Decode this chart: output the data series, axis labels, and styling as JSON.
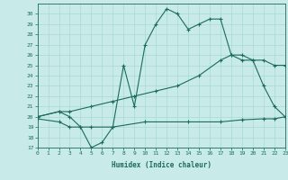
{
  "line1_x": [
    0,
    2,
    3,
    4,
    5,
    6,
    7,
    8,
    9,
    10,
    11,
    12,
    13,
    14,
    15,
    16,
    17,
    18,
    19,
    20,
    21,
    22,
    23
  ],
  "line1_y": [
    20.0,
    20.5,
    20.0,
    19.0,
    17.0,
    17.5,
    19.0,
    25.0,
    21.0,
    27.0,
    29.0,
    30.5,
    30.0,
    28.5,
    29.0,
    29.5,
    29.5,
    26.0,
    26.0,
    25.5,
    23.0,
    21.0,
    20.0
  ],
  "line2_x": [
    0,
    2,
    3,
    5,
    7,
    9,
    11,
    13,
    15,
    17,
    18,
    19,
    20,
    21,
    22,
    23
  ],
  "line2_y": [
    20.0,
    20.5,
    20.5,
    21.0,
    21.5,
    22.0,
    22.5,
    23.0,
    24.0,
    25.5,
    26.0,
    25.5,
    25.5,
    25.5,
    25.0,
    25.0
  ],
  "line3_x": [
    0,
    2,
    3,
    4,
    5,
    7,
    10,
    14,
    17,
    19,
    21,
    22,
    23
  ],
  "line3_y": [
    19.8,
    19.5,
    19.0,
    19.0,
    19.0,
    19.0,
    19.5,
    19.5,
    19.5,
    19.7,
    19.8,
    19.8,
    20.0
  ],
  "line_color": "#1b6b5e",
  "bg_color": "#c8eae8",
  "grid_color": "#a8d8d4",
  "xlabel": "Humidex (Indice chaleur)",
  "ylim": [
    17,
    31
  ],
  "xlim": [
    0,
    23
  ],
  "yticks": [
    17,
    18,
    19,
    20,
    21,
    22,
    23,
    24,
    25,
    26,
    27,
    28,
    29,
    30
  ],
  "xticks": [
    0,
    1,
    2,
    3,
    4,
    5,
    6,
    7,
    8,
    9,
    10,
    11,
    12,
    13,
    14,
    15,
    16,
    17,
    18,
    19,
    20,
    21,
    22,
    23
  ]
}
